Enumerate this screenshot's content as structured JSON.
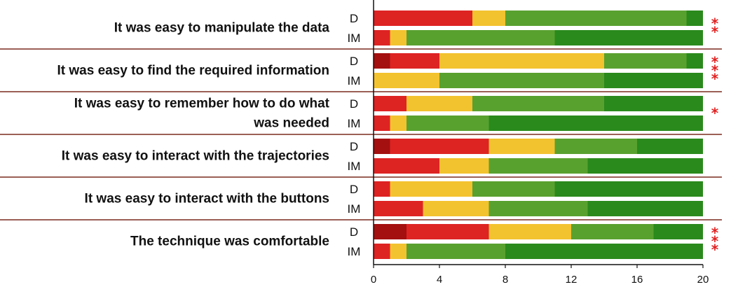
{
  "chart_data": {
    "type": "bar",
    "stacked": true,
    "orientation": "horizontal",
    "xlim": [
      0,
      20
    ],
    "xticks": [
      0,
      4,
      8,
      12,
      16,
      20
    ],
    "segment_colors": [
      "#a40f0f",
      "#de2323",
      "#f3c22f",
      "#59a12f",
      "#2a8a1c"
    ],
    "groups": [
      {
        "question": [
          "It was easy to manipulate the data"
        ],
        "significance": "**",
        "bars": [
          {
            "condition": "D",
            "values": [
              0,
              6,
              2,
              11,
              1
            ]
          },
          {
            "condition": "IM",
            "values": [
              0,
              1,
              1,
              9,
              9
            ]
          }
        ]
      },
      {
        "question": [
          "It was easy to find the required information"
        ],
        "significance": "***",
        "bars": [
          {
            "condition": "D",
            "values": [
              1,
              3,
              10,
              5,
              1
            ]
          },
          {
            "condition": "IM",
            "values": [
              0,
              0,
              4,
              10,
              6
            ]
          }
        ]
      },
      {
        "question": [
          "It was easy to remember how to do what",
          "was needed"
        ],
        "significance": "*",
        "bars": [
          {
            "condition": "D",
            "values": [
              0,
              2,
              4,
              8,
              6
            ]
          },
          {
            "condition": "IM",
            "values": [
              0,
              1,
              1,
              5,
              13
            ]
          }
        ]
      },
      {
        "question": [
          "It was easy to interact with the trajectories"
        ],
        "significance": "",
        "bars": [
          {
            "condition": "D",
            "values": [
              1,
              6,
              4,
              5,
              4
            ]
          },
          {
            "condition": "IM",
            "values": [
              0,
              4,
              3,
              6,
              7
            ]
          }
        ]
      },
      {
        "question": [
          "It was easy to interact with the buttons"
        ],
        "significance": "",
        "bars": [
          {
            "condition": "D",
            "values": [
              0,
              1,
              5,
              5,
              9
            ]
          },
          {
            "condition": "IM",
            "values": [
              0,
              3,
              4,
              6,
              7
            ]
          }
        ]
      },
      {
        "question": [
          "The technique was comfortable"
        ],
        "significance": "***",
        "bars": [
          {
            "condition": "D",
            "values": [
              2,
              5,
              5,
              5,
              3
            ]
          },
          {
            "condition": "IM",
            "values": [
              0,
              1,
              1,
              6,
              12
            ]
          }
        ]
      }
    ]
  }
}
